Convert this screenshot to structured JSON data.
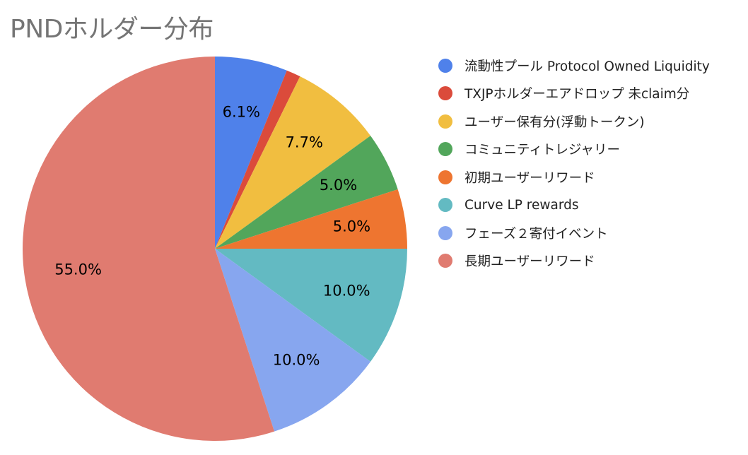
{
  "chart_data": {
    "type": "pie",
    "title": "PNDホルダー分布",
    "legend_position": "right",
    "start_angle": "12 o'clock, clockwise",
    "slices": [
      {
        "name": "流動性プール Protocol Owned Liquidity",
        "value": 6.1,
        "label": "6.1%",
        "color": "#4f81ea"
      },
      {
        "name": "TXJPホルダーエアドロップ 未claim分",
        "value": 1.2,
        "label": "",
        "color": "#db4b3b"
      },
      {
        "name": "ユーザー保有分(浮動トークン)",
        "value": 7.7,
        "label": "7.7%",
        "color": "#f1be40"
      },
      {
        "name": "コミュニティトレジャリー",
        "value": 5.0,
        "label": "5.0%",
        "color": "#52a65b"
      },
      {
        "name": "初期ユーザーリワード",
        "value": 5.0,
        "label": "5.0%",
        "color": "#ee7530"
      },
      {
        "name": "Curve LP rewards",
        "value": 10.0,
        "label": "10.0%",
        "color": "#63bac2"
      },
      {
        "name": "フェーズ２寄付イベント",
        "value": 10.0,
        "label": "10.0%",
        "color": "#87a6ef"
      },
      {
        "name": "長期ユーザーリワード",
        "value": 55.0,
        "label": "55.0%",
        "color": "#e07b70"
      }
    ]
  }
}
